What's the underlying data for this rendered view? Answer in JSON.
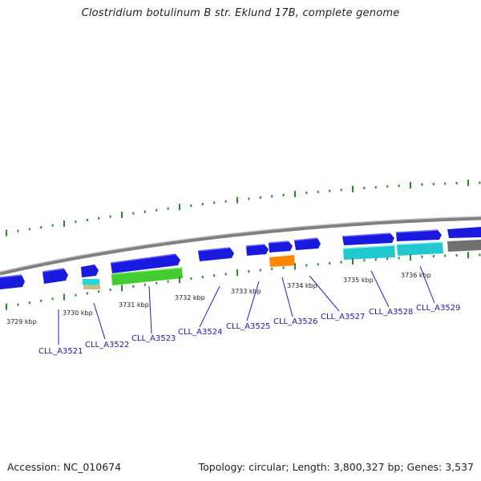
{
  "title": "Clostridium botulinum B str. Eklund 17B, complete genome",
  "footer": {
    "accession": "Accession: NC_010674",
    "summary": "Topology: circular; Length: 3,800,327 bp; Genes: 3,537"
  },
  "ruler_labels": [
    "3729 kbp",
    "3730 kbp",
    "3731 kbp",
    "3732 kbp",
    "3733 kbp",
    "3734 kbp",
    "3735 kbp",
    "3736 kbp"
  ],
  "gene_labels": [
    "CLL_A3521",
    "CLL_A3522",
    "CLL_A3523",
    "CLL_A3524",
    "CLL_A3525",
    "CLL_A3526",
    "CLL_A3527",
    "CLL_A3528",
    "CLL_A3529"
  ],
  "colors": {
    "cds_blue": "#1a1adf",
    "rna_cyan": "#22c8d0",
    "green": "#44cc33",
    "orange": "#ff8800",
    "grey": "#707070",
    "tan": "#c8bb8e",
    "backbone": "#8a8a8a",
    "tick_green": "#2a8a2a",
    "label_blue": "#1a1aa8"
  }
}
